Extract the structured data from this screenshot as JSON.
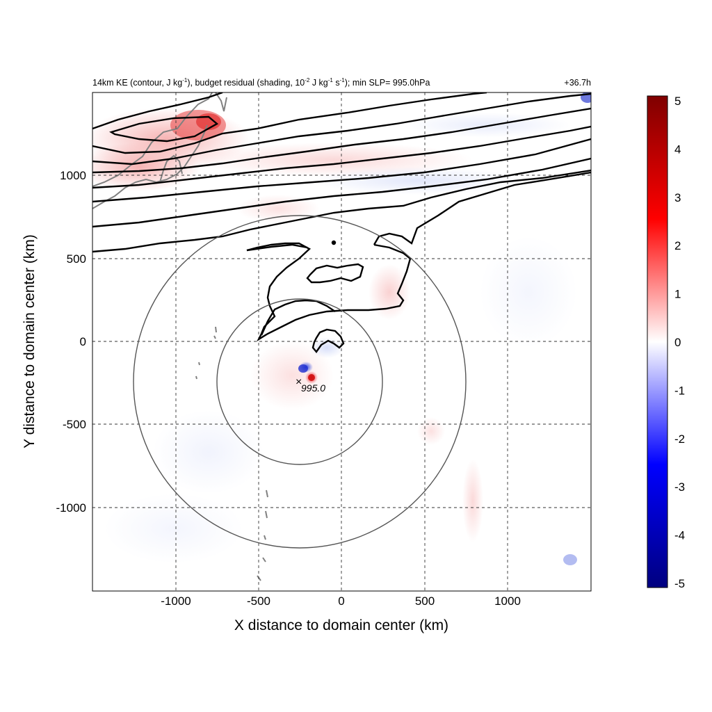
{
  "chart_data": {
    "type": "heatmap",
    "title_left_parts": {
      "p1": "14km KE (contour, J kg",
      "p1_sup": "-1",
      "p2": "), budget residual (shading, 10",
      "p2_sup": "-2",
      "p3": " J kg",
      "p3_sup": "-1",
      "p4": " s",
      "p4_sup": "-1",
      "p5": "); min SLP= 995.0hPa"
    },
    "title_right": "+36.7h",
    "xlabel": "X distance to domain center (km)",
    "ylabel": "Y distance to domain center (km)",
    "xlim": [
      -1500,
      1500
    ],
    "ylim": [
      -1500,
      1500
    ],
    "xticks": [
      -1000,
      -500,
      0,
      500,
      1000
    ],
    "yticks": [
      -1000,
      -500,
      0,
      500,
      1000
    ],
    "xtick_labels": [
      "-1000",
      "-500",
      "0",
      "500",
      "1000"
    ],
    "ytick_labels": [
      "-1000",
      "-500",
      "0",
      "500",
      "1000"
    ],
    "grid": "dashed",
    "colorbar": {
      "range": [
        -5,
        5
      ],
      "ticks": [
        5,
        4,
        3,
        2,
        1,
        0,
        -1,
        -2,
        -3,
        -4,
        -5
      ],
      "tick_labels": [
        "5",
        "4",
        "3",
        "2",
        "1",
        "0",
        "-1",
        "-2",
        "-3",
        "-4",
        "-5"
      ],
      "colormap": [
        "#00007f",
        "#0000ff",
        "#ffffff",
        "#ff0000",
        "#7f0000"
      ]
    },
    "storm_center": {
      "x": -250,
      "y": -240,
      "label": "995.0",
      "marker": "×"
    },
    "range_rings_km": [
      500,
      1000
    ],
    "contour_color": "#000000",
    "coastline_color": "#808080"
  }
}
